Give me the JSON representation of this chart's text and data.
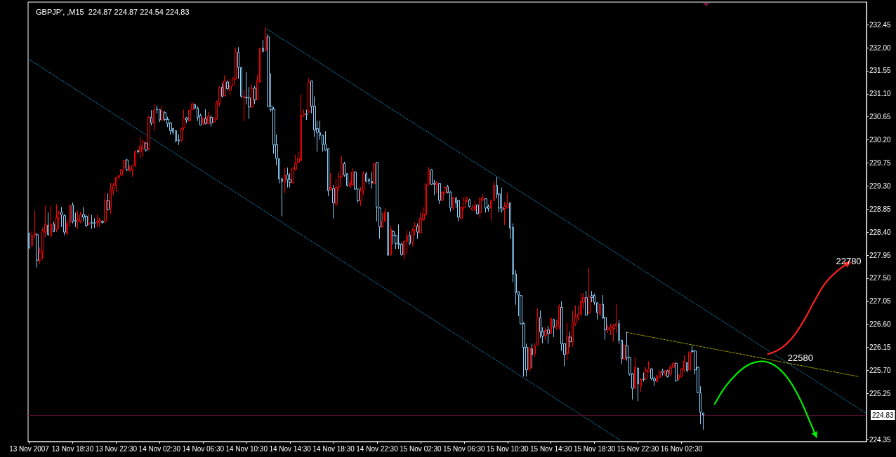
{
  "chart_data": {
    "type": "candlestick",
    "title": "GBPJP', ,M15  224.87 224.87 224.54 224.83",
    "x": [
      "2007-11-13T14:30",
      "2007-11-13T14:45",
      "2007-11-13T15:00",
      "2007-11-13T15:15",
      "2007-11-13T15:30",
      "2007-11-13T15:45",
      "2007-11-13T16:00",
      "2007-11-13T16:15",
      "2007-11-13T16:30",
      "2007-11-13T16:45",
      "2007-11-13T17:00",
      "2007-11-13T17:15",
      "2007-11-13T17:30",
      "2007-11-13T17:45",
      "2007-11-13T18:00",
      "2007-11-13T18:15",
      "2007-11-13T18:30",
      "2007-11-13T18:45",
      "2007-11-13T19:00",
      "2007-11-13T19:15",
      "2007-11-13T19:30",
      "2007-11-13T19:45",
      "2007-11-13T20:00",
      "2007-11-13T20:15",
      "2007-11-13T20:30",
      "2007-11-13T20:45",
      "2007-11-13T21:00",
      "2007-11-13T21:15",
      "2007-11-13T21:30",
      "2007-11-13T21:45",
      "2007-11-13T22:00",
      "2007-11-13T22:15",
      "2007-11-13T22:30",
      "2007-11-13T22:45",
      "2007-11-13T23:00",
      "2007-11-13T23:15",
      "2007-11-13T23:30",
      "2007-11-13T23:45",
      "2007-11-14T00:00",
      "2007-11-14T00:15",
      "2007-11-14T00:30",
      "2007-11-14T00:45",
      "2007-11-14T01:00",
      "2007-11-14T01:15",
      "2007-11-14T01:30",
      "2007-11-14T01:45",
      "2007-11-14T02:00",
      "2007-11-14T02:15",
      "2007-11-14T02:30",
      "2007-11-14T02:45",
      "2007-11-14T03:00",
      "2007-11-14T03:15",
      "2007-11-14T03:30",
      "2007-11-14T03:45",
      "2007-11-14T04:00",
      "2007-11-14T04:15",
      "2007-11-14T04:30",
      "2007-11-14T04:45",
      "2007-11-14T05:00",
      "2007-11-14T05:15",
      "2007-11-14T05:30",
      "2007-11-14T05:45",
      "2007-11-14T06:00",
      "2007-11-14T06:15",
      "2007-11-14T06:30",
      "2007-11-14T06:45",
      "2007-11-14T07:00",
      "2007-11-14T07:15",
      "2007-11-14T07:30",
      "2007-11-14T07:45",
      "2007-11-14T08:00",
      "2007-11-14T08:15",
      "2007-11-14T08:30",
      "2007-11-14T08:45",
      "2007-11-14T09:00",
      "2007-11-14T09:15",
      "2007-11-14T09:30",
      "2007-11-14T09:45",
      "2007-11-14T10:00",
      "2007-11-14T10:15",
      "2007-11-14T10:30",
      "2007-11-14T10:45",
      "2007-11-14T11:00",
      "2007-11-14T11:15",
      "2007-11-14T11:30",
      "2007-11-14T11:45",
      "2007-11-14T12:00",
      "2007-11-14T12:15",
      "2007-11-14T12:30",
      "2007-11-14T12:45",
      "2007-11-14T13:00",
      "2007-11-14T13:15",
      "2007-11-14T13:30",
      "2007-11-14T13:45",
      "2007-11-14T14:00",
      "2007-11-14T14:15",
      "2007-11-14T14:30",
      "2007-11-14T14:45",
      "2007-11-14T15:00",
      "2007-11-14T15:15",
      "2007-11-14T15:30",
      "2007-11-14T15:45",
      "2007-11-14T16:00",
      "2007-11-14T16:15",
      "2007-11-14T16:30",
      "2007-11-14T16:45",
      "2007-11-14T17:00",
      "2007-11-14T17:15",
      "2007-11-14T17:30",
      "2007-11-14T17:45",
      "2007-11-14T18:00",
      "2007-11-14T18:15",
      "2007-11-14T18:30",
      "2007-11-14T18:45",
      "2007-11-14T19:00",
      "2007-11-14T19:15",
      "2007-11-14T19:30",
      "2007-11-14T19:45",
      "2007-11-14T20:00",
      "2007-11-14T20:15",
      "2007-11-14T20:30",
      "2007-11-14T20:45",
      "2007-11-14T21:00",
      "2007-11-14T21:15",
      "2007-11-14T21:30",
      "2007-11-14T21:45",
      "2007-11-14T22:00",
      "2007-11-14T22:15",
      "2007-11-14T22:30",
      "2007-11-14T22:45",
      "2007-11-14T23:00",
      "2007-11-14T23:15",
      "2007-11-14T23:30",
      "2007-11-14T23:45",
      "2007-11-15T00:00",
      "2007-11-15T00:15",
      "2007-11-15T00:30",
      "2007-11-15T00:45",
      "2007-11-15T01:00",
      "2007-11-15T01:15",
      "2007-11-15T01:30",
      "2007-11-15T01:45",
      "2007-11-15T02:00",
      "2007-11-15T02:15",
      "2007-11-15T02:30",
      "2007-11-15T02:45",
      "2007-11-15T03:00",
      "2007-11-15T03:15",
      "2007-11-15T03:30",
      "2007-11-15T03:45",
      "2007-11-15T04:00",
      "2007-11-15T04:15",
      "2007-11-15T04:30",
      "2007-11-15T04:45",
      "2007-11-15T05:00",
      "2007-11-15T05:15",
      "2007-11-15T05:30",
      "2007-11-15T05:45",
      "2007-11-15T06:00",
      "2007-11-15T06:15",
      "2007-11-15T06:30",
      "2007-11-15T06:45",
      "2007-11-15T07:00",
      "2007-11-15T07:15",
      "2007-11-15T07:30",
      "2007-11-15T07:45",
      "2007-11-15T08:00",
      "2007-11-15T08:15",
      "2007-11-15T08:30",
      "2007-11-15T08:45",
      "2007-11-15T09:00",
      "2007-11-15T09:15",
      "2007-11-15T09:30",
      "2007-11-15T09:45",
      "2007-11-15T10:00",
      "2007-11-15T10:15",
      "2007-11-15T10:30",
      "2007-11-15T10:45",
      "2007-11-15T11:00",
      "2007-11-15T11:15",
      "2007-11-15T11:30",
      "2007-11-15T11:45",
      "2007-11-15T12:00",
      "2007-11-15T12:15",
      "2007-11-15T12:30",
      "2007-11-15T12:45",
      "2007-11-15T13:00",
      "2007-11-15T13:15",
      "2007-11-15T13:30",
      "2007-11-15T13:45",
      "2007-11-15T14:00",
      "2007-11-15T14:15",
      "2007-11-15T14:30",
      "2007-11-15T14:45",
      "2007-11-15T15:00",
      "2007-11-15T15:15",
      "2007-11-15T15:30",
      "2007-11-15T15:45",
      "2007-11-15T16:00",
      "2007-11-15T16:15",
      "2007-11-15T16:30",
      "2007-11-15T16:45",
      "2007-11-15T17:00",
      "2007-11-15T17:15",
      "2007-11-15T17:30",
      "2007-11-15T17:45",
      "2007-11-15T18:00",
      "2007-11-15T18:15",
      "2007-11-15T18:30",
      "2007-11-15T18:45",
      "2007-11-15T19:00",
      "2007-11-15T19:15",
      "2007-11-15T19:30",
      "2007-11-15T19:45",
      "2007-11-15T20:00",
      "2007-11-15T20:15",
      "2007-11-15T20:30",
      "2007-11-15T20:45",
      "2007-11-15T21:00",
      "2007-11-15T21:15",
      "2007-11-15T21:30",
      "2007-11-15T21:45",
      "2007-11-15T22:00",
      "2007-11-15T22:15",
      "2007-11-15T22:30",
      "2007-11-15T22:45",
      "2007-11-15T23:00",
      "2007-11-15T23:15",
      "2007-11-15T23:30",
      "2007-11-15T23:45",
      "2007-11-16T00:00",
      "2007-11-16T00:15",
      "2007-11-16T00:30",
      "2007-11-16T00:45",
      "2007-11-16T01:00",
      "2007-11-16T01:15",
      "2007-11-16T01:30",
      "2007-11-16T01:45",
      "2007-11-16T02:00",
      "2007-11-16T02:15",
      "2007-11-16T02:30",
      "2007-11-16T02:45",
      "2007-11-16T03:00",
      "2007-11-16T03:15",
      "2007-11-16T03:30",
      "2007-11-16T03:45",
      "2007-11-16T04:00",
      "2007-11-16T04:15",
      "2007-11-16T04:30"
    ],
    "ohlc": [
      [
        228.37,
        228.39,
        228.07,
        228.1
      ],
      [
        228.14,
        228.42,
        228.1,
        228.34
      ],
      [
        228.34,
        228.82,
        228.27,
        228.37
      ],
      [
        228.35,
        228.38,
        227.71,
        227.85
      ],
      [
        227.85,
        228.1,
        227.78,
        228.01
      ],
      [
        228.01,
        228.49,
        227.87,
        228.42
      ],
      [
        228.4,
        228.91,
        228.3,
        228.55
      ],
      [
        228.53,
        228.78,
        228.33,
        228.35
      ],
      [
        228.34,
        228.91,
        228.3,
        228.55
      ],
      [
        228.56,
        228.61,
        228.4,
        228.41
      ],
      [
        228.45,
        228.94,
        228.4,
        228.68
      ],
      [
        228.67,
        228.82,
        228.46,
        228.76
      ],
      [
        228.79,
        228.89,
        228.5,
        228.74
      ],
      [
        228.72,
        228.75,
        228.34,
        228.4
      ],
      [
        228.37,
        228.64,
        228.34,
        228.57
      ],
      [
        228.59,
        228.94,
        228.5,
        228.91
      ],
      [
        228.93,
        228.98,
        228.57,
        228.61
      ],
      [
        228.63,
        228.78,
        228.5,
        228.61
      ],
      [
        228.61,
        228.82,
        228.46,
        228.64
      ],
      [
        228.61,
        228.8,
        228.57,
        228.74
      ],
      [
        228.74,
        228.89,
        228.61,
        228.69
      ],
      [
        228.71,
        228.74,
        228.5,
        228.53
      ],
      [
        228.55,
        228.76,
        228.53,
        228.57
      ],
      [
        228.59,
        228.74,
        228.46,
        228.57
      ],
      [
        228.59,
        228.67,
        228.48,
        228.57
      ],
      [
        228.59,
        228.74,
        228.49,
        228.61
      ],
      [
        228.59,
        228.68,
        228.5,
        228.63
      ],
      [
        228.61,
        228.63,
        228.56,
        228.59
      ],
      [
        228.61,
        229.16,
        228.57,
        229.02
      ],
      [
        229.01,
        229.16,
        228.82,
        228.84
      ],
      [
        228.87,
        229.36,
        228.75,
        229.23
      ],
      [
        229.21,
        229.36,
        229.12,
        229.31
      ],
      [
        229.31,
        229.48,
        229.18,
        229.47
      ],
      [
        229.47,
        229.52,
        229.42,
        229.5
      ],
      [
        229.51,
        229.63,
        229.5,
        229.62
      ],
      [
        229.65,
        229.81,
        229.59,
        229.8
      ],
      [
        229.81,
        229.83,
        229.59,
        229.62
      ],
      [
        229.6,
        229.7,
        229.58,
        229.63
      ],
      [
        229.62,
        229.71,
        229.48,
        229.7
      ],
      [
        229.7,
        230.0,
        229.66,
        229.97
      ],
      [
        229.99,
        230.01,
        229.93,
        229.97
      ],
      [
        229.97,
        230.26,
        229.84,
        230.08
      ],
      [
        230.03,
        230.2,
        229.87,
        230.16
      ],
      [
        230.14,
        230.15,
        229.97,
        230.0
      ],
      [
        230.03,
        230.67,
        230.0,
        230.64
      ],
      [
        230.64,
        230.78,
        230.48,
        230.53
      ],
      [
        230.52,
        230.9,
        230.38,
        230.78
      ],
      [
        230.8,
        230.87,
        230.72,
        230.79
      ],
      [
        230.79,
        230.8,
        230.55,
        230.59
      ],
      [
        230.59,
        230.87,
        230.57,
        230.75
      ],
      [
        230.73,
        230.76,
        230.57,
        230.6
      ],
      [
        230.6,
        230.65,
        230.45,
        230.52
      ],
      [
        230.53,
        230.55,
        230.3,
        230.38
      ],
      [
        230.42,
        230.44,
        230.3,
        230.35
      ],
      [
        230.38,
        230.39,
        230.15,
        230.18
      ],
      [
        230.2,
        230.31,
        230.1,
        230.18
      ],
      [
        230.19,
        230.44,
        230.16,
        230.42
      ],
      [
        230.44,
        230.79,
        230.38,
        230.61
      ],
      [
        230.63,
        230.65,
        230.53,
        230.59
      ],
      [
        230.57,
        230.79,
        230.56,
        230.78
      ],
      [
        230.79,
        230.95,
        230.78,
        230.9
      ],
      [
        230.89,
        230.91,
        230.8,
        230.82
      ],
      [
        230.82,
        230.86,
        230.57,
        230.64
      ],
      [
        230.68,
        230.71,
        230.48,
        230.49
      ],
      [
        230.52,
        230.64,
        230.48,
        230.63
      ],
      [
        230.61,
        230.8,
        230.5,
        230.52
      ],
      [
        230.52,
        230.75,
        230.5,
        230.67
      ],
      [
        230.64,
        230.68,
        230.46,
        230.53
      ],
      [
        230.55,
        230.65,
        230.53,
        230.61
      ],
      [
        230.61,
        230.97,
        230.59,
        230.93
      ],
      [
        230.91,
        231.25,
        230.86,
        231.21
      ],
      [
        231.23,
        231.31,
        231.03,
        231.05
      ],
      [
        231.06,
        231.46,
        231.05,
        231.35
      ],
      [
        231.33,
        231.36,
        231.17,
        231.2
      ],
      [
        231.17,
        231.39,
        231.08,
        231.25
      ],
      [
        231.27,
        231.43,
        231.25,
        231.39
      ],
      [
        231.39,
        231.99,
        231.37,
        231.92
      ],
      [
        231.91,
        232.01,
        231.39,
        231.61
      ],
      [
        231.61,
        231.62,
        231.02,
        231.05
      ],
      [
        231.02,
        231.18,
        230.57,
        231.05
      ],
      [
        231.03,
        231.52,
        230.89,
        231.02
      ],
      [
        231.02,
        231.23,
        230.61,
        230.84
      ],
      [
        230.84,
        231.28,
        230.83,
        231.2
      ],
      [
        231.21,
        231.25,
        230.9,
        230.98
      ],
      [
        230.98,
        231.47,
        230.97,
        231.36
      ],
      [
        231.33,
        232.0,
        231.32,
        231.99
      ],
      [
        231.99,
        232.15,
        231.91,
        231.93
      ],
      [
        231.95,
        232.4,
        231.92,
        232.21
      ],
      [
        232.21,
        232.27,
        230.84,
        230.86
      ],
      [
        230.86,
        231.5,
        230.75,
        230.79
      ],
      [
        230.8,
        230.84,
        229.93,
        230.1
      ],
      [
        230.11,
        230.31,
        229.7,
        229.84
      ],
      [
        229.83,
        229.84,
        229.35,
        229.44
      ],
      [
        229.44,
        229.46,
        228.71,
        229.39
      ],
      [
        229.37,
        229.66,
        229.16,
        229.51
      ],
      [
        229.52,
        229.66,
        229.27,
        229.42
      ],
      [
        229.43,
        229.55,
        229.27,
        229.37
      ],
      [
        229.36,
        229.66,
        229.35,
        229.65
      ],
      [
        229.62,
        229.91,
        229.6,
        229.74
      ],
      [
        229.76,
        229.97,
        229.74,
        229.83
      ],
      [
        229.8,
        231.09,
        229.78,
        230.68
      ],
      [
        230.68,
        230.79,
        230.65,
        230.72
      ],
      [
        230.71,
        230.79,
        230.59,
        230.69
      ],
      [
        230.75,
        231.4,
        230.72,
        231.33
      ],
      [
        231.35,
        231.36,
        230.72,
        230.86
      ],
      [
        230.86,
        231.05,
        230.26,
        230.39
      ],
      [
        230.42,
        230.57,
        229.97,
        230.35
      ],
      [
        230.34,
        230.57,
        230.2,
        230.29
      ],
      [
        230.29,
        230.3,
        229.97,
        230.11
      ],
      [
        230.12,
        230.37,
        229.99,
        230.0
      ],
      [
        230.03,
        230.04,
        229.1,
        229.21
      ],
      [
        229.23,
        229.55,
        229.21,
        229.27
      ],
      [
        229.25,
        229.32,
        228.67,
        228.97
      ],
      [
        228.95,
        229.44,
        228.9,
        229.27
      ],
      [
        229.28,
        229.57,
        229.2,
        229.48
      ],
      [
        229.48,
        229.89,
        229.46,
        229.74
      ],
      [
        229.74,
        229.77,
        229.48,
        229.51
      ],
      [
        229.54,
        229.55,
        229.29,
        229.31
      ],
      [
        229.29,
        229.43,
        229.25,
        229.35
      ],
      [
        229.32,
        229.65,
        229.31,
        229.57
      ],
      [
        229.57,
        229.59,
        229.22,
        229.24
      ],
      [
        229.24,
        229.25,
        228.98,
        229.01
      ],
      [
        229.02,
        229.28,
        228.91,
        229.2
      ],
      [
        229.22,
        229.59,
        229.13,
        229.54
      ],
      [
        229.54,
        229.58,
        229.37,
        229.39
      ],
      [
        229.42,
        229.46,
        229.33,
        229.4
      ],
      [
        229.39,
        229.57,
        229.25,
        229.36
      ],
      [
        229.35,
        229.76,
        229.33,
        229.73
      ],
      [
        229.76,
        229.77,
        228.61,
        228.89
      ],
      [
        228.87,
        228.89,
        228.27,
        228.5
      ],
      [
        228.5,
        228.78,
        228.48,
        228.61
      ],
      [
        228.61,
        228.86,
        228.6,
        228.78
      ],
      [
        228.78,
        228.79,
        227.94,
        227.95
      ],
      [
        227.96,
        228.53,
        227.94,
        228.45
      ],
      [
        228.41,
        228.44,
        228.16,
        228.33
      ],
      [
        228.33,
        228.35,
        228.07,
        228.18
      ],
      [
        228.18,
        228.55,
        228.07,
        228.16
      ],
      [
        228.16,
        228.19,
        227.94,
        227.96
      ],
      [
        227.96,
        228.25,
        227.86,
        228.22
      ],
      [
        228.22,
        228.44,
        227.97,
        228.33
      ],
      [
        228.34,
        228.41,
        228.14,
        228.18
      ],
      [
        228.2,
        228.48,
        228.12,
        228.44
      ],
      [
        228.44,
        228.59,
        228.33,
        228.52
      ],
      [
        228.52,
        228.57,
        228.27,
        228.4
      ],
      [
        228.38,
        228.78,
        228.37,
        228.67
      ],
      [
        228.64,
        228.89,
        228.61,
        228.75
      ],
      [
        228.74,
        229.36,
        228.72,
        229.33
      ],
      [
        229.33,
        229.67,
        229.31,
        229.6
      ],
      [
        229.62,
        229.63,
        229.32,
        229.33
      ],
      [
        229.36,
        229.42,
        229.12,
        229.33
      ],
      [
        229.32,
        229.4,
        229.16,
        229.36
      ],
      [
        229.35,
        229.36,
        228.95,
        229.02
      ],
      [
        229.02,
        229.2,
        229.01,
        229.18
      ],
      [
        229.16,
        229.29,
        229.14,
        229.27
      ],
      [
        229.29,
        229.32,
        229.16,
        229.17
      ],
      [
        229.18,
        229.2,
        228.8,
        228.87
      ],
      [
        228.87,
        229.09,
        228.82,
        229.08
      ],
      [
        229.06,
        229.09,
        228.87,
        228.97
      ],
      [
        229.02,
        229.03,
        228.61,
        228.69
      ],
      [
        228.67,
        228.9,
        228.64,
        228.88
      ],
      [
        228.88,
        229.08,
        228.82,
        229.02
      ],
      [
        229.02,
        229.09,
        228.97,
        229.08
      ],
      [
        229.03,
        229.05,
        228.88,
        228.9
      ],
      [
        228.83,
        228.94,
        228.82,
        228.88
      ],
      [
        228.84,
        229.02,
        228.8,
        228.91
      ],
      [
        228.93,
        228.94,
        228.74,
        228.76
      ],
      [
        228.78,
        229.08,
        228.68,
        229.06
      ],
      [
        229.03,
        229.14,
        229.01,
        229.06
      ],
      [
        229.05,
        229.06,
        228.78,
        228.87
      ],
      [
        228.9,
        228.94,
        228.8,
        228.86
      ],
      [
        228.87,
        229.03,
        228.63,
        229.01
      ],
      [
        229.02,
        229.39,
        229.01,
        229.31
      ],
      [
        229.31,
        229.48,
        229.06,
        229.14
      ],
      [
        229.14,
        229.16,
        228.79,
        228.87
      ],
      [
        228.87,
        229.27,
        228.78,
        228.83
      ],
      [
        228.86,
        228.99,
        228.54,
        228.9
      ],
      [
        228.88,
        229.17,
        228.86,
        228.95
      ],
      [
        228.97,
        228.98,
        228.27,
        228.48
      ],
      [
        228.49,
        228.57,
        227.42,
        227.58
      ],
      [
        227.58,
        227.66,
        226.98,
        227.22
      ],
      [
        227.24,
        227.24,
        226.76,
        227.17
      ],
      [
        227.16,
        227.17,
        226.6,
        226.61
      ],
      [
        226.61,
        226.64,
        225.58,
        226.15
      ],
      [
        226.15,
        226.22,
        225.58,
        225.71
      ],
      [
        225.73,
        226.15,
        225.67,
        226.14
      ],
      [
        226.12,
        226.22,
        225.74,
        226.01
      ],
      [
        226.03,
        226.23,
        225.96,
        226.18
      ],
      [
        226.19,
        226.91,
        226.18,
        226.73
      ],
      [
        226.73,
        226.87,
        226.33,
        226.45
      ],
      [
        226.46,
        226.54,
        226.23,
        226.37
      ],
      [
        226.38,
        226.54,
        226.29,
        226.48
      ],
      [
        226.49,
        226.57,
        226.22,
        226.42
      ],
      [
        226.42,
        226.73,
        226.42,
        226.71
      ],
      [
        226.69,
        226.71,
        226.35,
        226.54
      ],
      [
        226.53,
        226.69,
        226.5,
        226.57
      ],
      [
        226.56,
        226.99,
        226.5,
        226.95
      ],
      [
        226.93,
        227.05,
        226.08,
        226.22
      ],
      [
        226.22,
        226.23,
        225.78,
        226.01
      ],
      [
        226.03,
        226.63,
        225.9,
        226.37
      ],
      [
        226.35,
        226.46,
        226.15,
        226.26
      ],
      [
        226.26,
        226.86,
        226.16,
        226.64
      ],
      [
        226.61,
        226.97,
        226.57,
        226.73
      ],
      [
        226.72,
        226.97,
        226.67,
        226.8
      ],
      [
        226.8,
        227.21,
        226.76,
        227.05
      ],
      [
        227.03,
        227.21,
        226.9,
        227.12
      ],
      [
        227.12,
        227.25,
        226.77,
        226.78
      ],
      [
        226.83,
        227.7,
        226.8,
        227.14
      ],
      [
        227.16,
        227.25,
        227.03,
        227.12
      ],
      [
        227.16,
        227.2,
        226.98,
        227.03
      ],
      [
        227.02,
        227.03,
        226.69,
        226.83
      ],
      [
        226.8,
        227.01,
        226.76,
        226.99
      ],
      [
        226.99,
        227.17,
        226.71,
        226.72
      ],
      [
        226.73,
        226.74,
        226.3,
        226.49
      ],
      [
        226.49,
        226.6,
        226.43,
        226.53
      ],
      [
        226.49,
        226.61,
        226.39,
        226.54
      ],
      [
        226.52,
        226.61,
        226.26,
        226.56
      ],
      [
        226.57,
        226.99,
        226.43,
        226.61
      ],
      [
        226.61,
        226.68,
        226.22,
        226.29
      ],
      [
        226.29,
        226.3,
        225.82,
        225.93
      ],
      [
        225.92,
        226.22,
        225.89,
        226.19
      ],
      [
        226.18,
        226.46,
        225.89,
        225.95
      ],
      [
        225.95,
        225.96,
        225.6,
        225.63
      ],
      [
        225.63,
        225.65,
        225.13,
        225.35
      ],
      [
        225.36,
        225.96,
        225.33,
        225.76
      ],
      [
        225.74,
        225.76,
        225.1,
        225.44
      ],
      [
        225.4,
        225.55,
        225.28,
        225.52
      ],
      [
        225.54,
        225.66,
        225.48,
        225.52
      ],
      [
        225.54,
        225.76,
        225.51,
        225.69
      ],
      [
        225.67,
        225.88,
        225.66,
        225.73
      ],
      [
        225.73,
        225.74,
        225.51,
        225.54
      ],
      [
        225.54,
        225.58,
        225.4,
        225.5
      ],
      [
        225.48,
        225.62,
        225.47,
        225.59
      ],
      [
        225.56,
        225.7,
        225.55,
        225.67
      ],
      [
        225.69,
        225.73,
        225.6,
        225.65
      ],
      [
        225.63,
        225.71,
        225.58,
        225.7
      ],
      [
        225.69,
        225.71,
        225.56,
        225.58
      ],
      [
        225.63,
        225.81,
        225.58,
        225.76
      ],
      [
        225.76,
        225.86,
        225.74,
        225.84
      ],
      [
        225.84,
        225.85,
        225.48,
        225.5
      ],
      [
        225.54,
        225.63,
        225.5,
        225.6
      ],
      [
        225.58,
        225.74,
        225.56,
        225.73
      ],
      [
        225.71,
        226.0,
        225.66,
        225.88
      ],
      [
        225.85,
        225.86,
        225.66,
        225.7
      ],
      [
        225.71,
        226.08,
        225.7,
        226.05
      ],
      [
        226.08,
        226.18,
        226.03,
        226.07
      ],
      [
        226.08,
        226.09,
        225.62,
        225.71
      ],
      [
        225.76,
        225.77,
        225.26,
        225.27
      ],
      [
        225.26,
        225.39,
        224.65,
        224.88
      ],
      [
        224.87,
        224.87,
        224.54,
        224.83
      ]
    ],
    "colors": [
      "#87cefa",
      "#ff0000",
      "#ff0000",
      "#87cefa",
      "#ff0000",
      "#ff0000",
      "#ff0000",
      "#87cefa",
      "#ff0000",
      "#87cefa",
      "#ff0000",
      "#ff0000",
      "#87cefa",
      "#87cefa",
      "#ff0000",
      "#ff0000",
      "#87cefa",
      "#87cefa",
      "#ff0000",
      "#ff0000",
      "#87cefa",
      "#87cefa",
      "#ff0000",
      "#87cefa",
      "#87cefa",
      "#ff0000",
      "#ff0000",
      "#87cefa",
      "#ff0000",
      "#87cefa",
      "#ff0000",
      "#ff0000",
      "#ff0000",
      "#ff0000",
      "#ff0000",
      "#ff0000",
      "#87cefa",
      "#ff0000",
      "#ff0000",
      "#ff0000",
      "#87cefa",
      "#ff0000",
      "#ff0000",
      "#87cefa",
      "#ff0000",
      "#87cefa",
      "#ff0000",
      "#87cefa",
      "#87cefa",
      "#ff0000",
      "#87cefa",
      "#87cefa",
      "#87cefa",
      "#87cefa",
      "#87cefa",
      "#87cefa",
      "#ff0000",
      "#ff0000",
      "#87cefa",
      "#ff0000",
      "#ff0000",
      "#87cefa",
      "#87cefa",
      "#87cefa",
      "#ff0000",
      "#87cefa",
      "#ff0000",
      "#87cefa",
      "#ff0000",
      "#ff0000",
      "#ff0000",
      "#87cefa",
      "#ff0000",
      "#87cefa",
      "#ff0000",
      "#ff0000",
      "#ff0000",
      "#87cefa",
      "#87cefa",
      "#ff0000",
      "#87cefa",
      "#87cefa",
      "#ff0000",
      "#87cefa",
      "#ff0000",
      "#ff0000",
      "#87cefa",
      "#ff0000",
      "#87cefa",
      "#87cefa",
      "#87cefa",
      "#87cefa",
      "#87cefa",
      "#87cefa",
      "#ff0000",
      "#87cefa",
      "#87cefa",
      "#ff0000",
      "#ff0000",
      "#ff0000",
      "#ff0000",
      "#ff0000",
      "#87cefa",
      "#ff0000",
      "#87cefa",
      "#87cefa",
      "#87cefa",
      "#87cefa",
      "#87cefa",
      "#87cefa",
      "#87cefa",
      "#ff0000",
      "#87cefa",
      "#ff0000",
      "#ff0000",
      "#ff0000",
      "#87cefa",
      "#87cefa",
      "#ff0000",
      "#ff0000",
      "#87cefa",
      "#87cefa",
      "#ff0000",
      "#ff0000",
      "#87cefa",
      "#87cefa",
      "#87cefa",
      "#ff0000",
      "#87cefa",
      "#87cefa",
      "#ff0000",
      "#ff0000",
      "#87cefa",
      "#ff0000",
      "#87cefa",
      "#87cefa",
      "#87cefa",
      "#87cefa",
      "#ff0000",
      "#ff0000",
      "#87cefa",
      "#ff0000",
      "#ff0000",
      "#87cefa",
      "#ff0000",
      "#ff0000",
      "#ff0000",
      "#ff0000",
      "#87cefa",
      "#87cefa",
      "#ff0000",
      "#87cefa",
      "#ff0000",
      "#ff0000",
      "#87cefa",
      "#87cefa",
      "#ff0000",
      "#87cefa",
      "#87cefa",
      "#ff0000",
      "#ff0000",
      "#ff0000",
      "#87cefa",
      "#ff0000",
      "#ff0000",
      "#87cefa",
      "#ff0000",
      "#ff0000",
      "#87cefa",
      "#87cefa",
      "#ff0000",
      "#ff0000",
      "#87cefa",
      "#87cefa",
      "#87cefa",
      "#ff0000",
      "#ff0000",
      "#87cefa",
      "#87cefa",
      "#87cefa",
      "#87cefa",
      "#87cefa",
      "#87cefa",
      "#87cefa",
      "#ff0000",
      "#87cefa",
      "#ff0000",
      "#ff0000",
      "#87cefa",
      "#87cefa",
      "#ff0000",
      "#87cefa",
      "#ff0000",
      "#87cefa",
      "#ff0000",
      "#ff0000",
      "#87cefa",
      "#87cefa",
      "#ff0000",
      "#87cefa",
      "#ff0000",
      "#ff0000",
      "#ff0000",
      "#ff0000",
      "#ff0000",
      "#87cefa",
      "#ff0000",
      "#87cefa",
      "#87cefa",
      "#87cefa",
      "#ff0000",
      "#87cefa",
      "#87cefa",
      "#ff0000",
      "#ff0000",
      "#ff0000",
      "#ff0000",
      "#87cefa",
      "#87cefa",
      "#ff0000",
      "#87cefa",
      "#87cefa",
      "#87cefa",
      "#ff0000",
      "#87cefa",
      "#ff0000",
      "#87cefa",
      "#ff0000",
      "#ff0000",
      "#87cefa",
      "#87cefa",
      "#ff0000",
      "#ff0000",
      "#87cefa",
      "#ff0000",
      "#87cefa",
      "#ff0000",
      "#ff0000",
      "#87cefa",
      "#ff0000",
      "#ff0000",
      "#ff0000",
      "#87cefa",
      "#ff0000",
      "#87cefa",
      "#87cefa",
      "#87cefa",
      "#87cefa",
      "#87cefa"
    ],
    "series": [
      {
        "type": "line",
        "x": [
          "2007-11-14T12:15",
          "2007-11-16T19:30"
        ],
        "values": [
          232.38,
          224.86
        ],
        "color": "#1ea8e8",
        "line_style": "dotted",
        "marker": "none"
      },
      {
        "type": "line",
        "x": [
          "2007-11-13T14:30",
          "2007-11-15T21:00"
        ],
        "values": [
          231.77,
          224.32
        ],
        "color": "#1ea8e8",
        "line_style": "dotted",
        "marker": "none"
      },
      {
        "type": "line",
        "x": [
          "2007-11-15T21:30",
          "2007-11-16T18:45"
        ],
        "values": [
          226.44,
          225.58
        ],
        "color": "#ffff00",
        "line_style": "dotted",
        "marker": "none"
      }
    ],
    "ref_lines": [
      {
        "axis": "y",
        "value": 224.83,
        "label": "224.83",
        "color": "#6b0f3a"
      }
    ],
    "annotations": [
      "22580",
      "22780"
    ],
    "xlim": [
      "2007-11-13T14:24",
      "2007-11-16T19:31"
    ],
    "ylim": [
      224.31,
      232.89
    ],
    "xticks": [
      {
        "value": "2007-11-13T14:30",
        "label": "13 Nov 2007"
      },
      {
        "value": "2007-11-13T18:30",
        "label": "13 Nov 18:30"
      },
      {
        "value": "2007-11-13T22:30",
        "label": "13 Nov 22:30"
      },
      {
        "value": "2007-11-14T02:30",
        "label": "14 Nov 02:30"
      },
      {
        "value": "2007-11-14T06:30",
        "label": "14 Nov 06:30"
      },
      {
        "value": "2007-11-14T10:30",
        "label": "14 Nov 10:30"
      },
      {
        "value": "2007-11-14T14:30",
        "label": "14 Nov 14:30"
      },
      {
        "value": "2007-11-14T18:30",
        "label": "14 Nov 18:30"
      },
      {
        "value": "2007-11-14T22:30",
        "label": "14 Nov 22:30"
      },
      {
        "value": "2007-11-15T02:30",
        "label": "15 Nov 02:30"
      },
      {
        "value": "2007-11-15T06:30",
        "label": "15 Nov 06:30"
      },
      {
        "value": "2007-11-15T10:30",
        "label": "15 Nov 10:30"
      },
      {
        "value": "2007-11-15T14:30",
        "label": "15 Nov 14:30"
      },
      {
        "value": "2007-11-15T18:30",
        "label": "15 Nov 18:30"
      },
      {
        "value": "2007-11-15T22:30",
        "label": "15 Nov 22:30"
      },
      {
        "value": "2007-11-16T02:30",
        "label": "16 Nov 02:30"
      }
    ],
    "yticks": [
      232.45,
      {
        "value": 232,
        "label": "232.00"
      },
      231.55,
      {
        "value": 231.1,
        "label": "231.10"
      },
      230.65,
      {
        "value": 230.2,
        "label": "230.20"
      },
      229.75,
      {
        "value": 229.3,
        "label": "229.30"
      },
      228.85,
      {
        "value": 228.4,
        "label": "228.40"
      },
      227.95,
      {
        "value": 227.5,
        "label": "227.50"
      },
      227.05,
      {
        "value": 226.6,
        "label": "226.60"
      },
      226.15,
      {
        "value": 225.7,
        "label": "225.70"
      },
      225.25,
      224.35
    ]
  }
}
